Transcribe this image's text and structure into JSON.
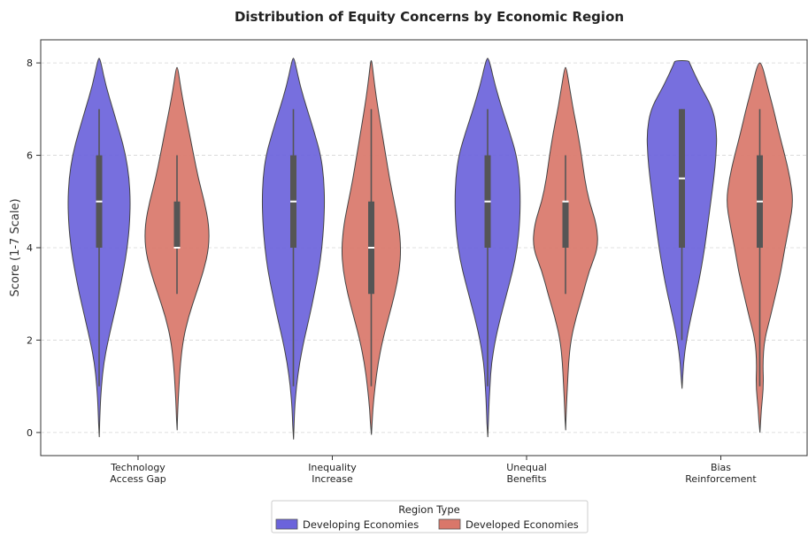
{
  "chart_data": {
    "type": "violin",
    "title": "Distribution of Equity Concerns by Economic Region",
    "xlabel": "",
    "ylabel": "Score (1-7 Scale)",
    "ylim": [
      -0.5,
      8.5
    ],
    "yticks": [
      0,
      2,
      4,
      6,
      8
    ],
    "grid": "horizontal-dashed",
    "categories": [
      [
        "Technology",
        "Access Gap"
      ],
      [
        "Inequality",
        "Increase"
      ],
      [
        "Unequal",
        "Benefits"
      ],
      [
        "Bias",
        "Reinforcement"
      ]
    ],
    "legend": {
      "title": "Region Type",
      "placement": "bottom-center"
    },
    "series": [
      {
        "name": "Developing Economies",
        "color": "#6b63db",
        "groups": [
          {
            "min": 1,
            "q1": 4,
            "median": 5,
            "q3": 6,
            "max": 7,
            "profile": [
              [
                -0.1,
                0.005
              ],
              [
                0.5,
                0.025
              ],
              [
                1,
                0.06
              ],
              [
                1.5,
                0.12
              ],
              [
                2,
                0.24
              ],
              [
                2.5,
                0.38
              ],
              [
                3,
                0.52
              ],
              [
                3.5,
                0.64
              ],
              [
                4,
                0.74
              ],
              [
                4.5,
                0.8
              ],
              [
                5,
                0.82
              ],
              [
                5.5,
                0.79
              ],
              [
                6,
                0.7
              ],
              [
                6.5,
                0.54
              ],
              [
                7,
                0.36
              ],
              [
                7.5,
                0.18
              ],
              [
                8,
                0.05
              ],
              [
                8.1,
                0.01
              ]
            ]
          },
          {
            "min": 1,
            "q1": 4,
            "median": 5,
            "q3": 6,
            "max": 7,
            "profile": [
              [
                -0.15,
                0.005
              ],
              [
                0.5,
                0.03
              ],
              [
                1,
                0.08
              ],
              [
                1.5,
                0.16
              ],
              [
                2,
                0.28
              ],
              [
                2.5,
                0.42
              ],
              [
                3,
                0.55
              ],
              [
                3.5,
                0.67
              ],
              [
                4,
                0.75
              ],
              [
                4.5,
                0.8
              ],
              [
                5,
                0.82
              ],
              [
                5.5,
                0.8
              ],
              [
                6,
                0.72
              ],
              [
                6.5,
                0.55
              ],
              [
                7,
                0.36
              ],
              [
                7.5,
                0.18
              ],
              [
                8,
                0.05
              ],
              [
                8.1,
                0.01
              ]
            ]
          },
          {
            "min": 1,
            "q1": 4,
            "median": 5,
            "q3": 6,
            "max": 7,
            "profile": [
              [
                -0.1,
                0.005
              ],
              [
                0.5,
                0.03
              ],
              [
                1,
                0.06
              ],
              [
                1.5,
                0.1
              ],
              [
                2,
                0.2
              ],
              [
                2.5,
                0.34
              ],
              [
                3,
                0.5
              ],
              [
                3.5,
                0.66
              ],
              [
                4,
                0.78
              ],
              [
                4.5,
                0.84
              ],
              [
                5,
                0.86
              ],
              [
                5.5,
                0.84
              ],
              [
                6,
                0.76
              ],
              [
                6.5,
                0.58
              ],
              [
                7,
                0.38
              ],
              [
                7.5,
                0.2
              ],
              [
                8,
                0.06
              ],
              [
                8.1,
                0.01
              ]
            ]
          },
          {
            "min": 2,
            "q1": 4,
            "median": 5.5,
            "q3": 7,
            "max": 7,
            "profile": [
              [
                0.95,
                0.005
              ],
              [
                1.5,
                0.04
              ],
              [
                2,
                0.12
              ],
              [
                2.5,
                0.24
              ],
              [
                3,
                0.38
              ],
              [
                3.5,
                0.5
              ],
              [
                4,
                0.6
              ],
              [
                4.5,
                0.68
              ],
              [
                5,
                0.76
              ],
              [
                5.5,
                0.84
              ],
              [
                6,
                0.9
              ],
              [
                6.5,
                0.92
              ],
              [
                7,
                0.82
              ],
              [
                7.5,
                0.48
              ],
              [
                8,
                0.2
              ],
              [
                8.05,
                0.18
              ]
            ]
          }
        ]
      },
      {
        "name": "Developed Economies",
        "color": "#d9776a",
        "groups": [
          {
            "min": 3,
            "q1": 4,
            "median": 4,
            "q3": 5,
            "max": 6,
            "profile": [
              [
                0.05,
                0.005
              ],
              [
                0.5,
                0.02
              ],
              [
                1,
                0.05
              ],
              [
                1.5,
                0.09
              ],
              [
                2,
                0.16
              ],
              [
                2.5,
                0.3
              ],
              [
                3,
                0.5
              ],
              [
                3.5,
                0.7
              ],
              [
                4,
                0.84
              ],
              [
                4.5,
                0.84
              ],
              [
                5,
                0.72
              ],
              [
                5.5,
                0.56
              ],
              [
                6,
                0.44
              ],
              [
                6.5,
                0.32
              ],
              [
                7,
                0.2
              ],
              [
                7.5,
                0.09
              ],
              [
                7.9,
                0.02
              ]
            ]
          },
          {
            "min": 1,
            "q1": 3,
            "median": 4,
            "q3": 5,
            "max": 7,
            "profile": [
              [
                -0.05,
                0.005
              ],
              [
                0.5,
                0.04
              ],
              [
                1,
                0.1
              ],
              [
                1.5,
                0.18
              ],
              [
                2,
                0.3
              ],
              [
                2.5,
                0.46
              ],
              [
                3,
                0.62
              ],
              [
                3.5,
                0.74
              ],
              [
                4,
                0.78
              ],
              [
                4.5,
                0.72
              ],
              [
                5,
                0.6
              ],
              [
                5.5,
                0.48
              ],
              [
                6,
                0.38
              ],
              [
                6.5,
                0.28
              ],
              [
                7,
                0.18
              ],
              [
                7.5,
                0.09
              ],
              [
                8,
                0.02
              ],
              [
                8.05,
                0.005
              ]
            ]
          },
          {
            "min": 3,
            "q1": 4,
            "median": 5,
            "q3": 5,
            "max": 6,
            "profile": [
              [
                0.05,
                0.005
              ],
              [
                0.5,
                0.02
              ],
              [
                1,
                0.05
              ],
              [
                1.5,
                0.08
              ],
              [
                2,
                0.14
              ],
              [
                2.5,
                0.28
              ],
              [
                3,
                0.46
              ],
              [
                3.5,
                0.62
              ],
              [
                4,
                0.86
              ],
              [
                4.5,
                0.82
              ],
              [
                5,
                0.62
              ],
              [
                5.5,
                0.5
              ],
              [
                6,
                0.42
              ],
              [
                6.5,
                0.32
              ],
              [
                7,
                0.2
              ],
              [
                7.5,
                0.1
              ],
              [
                7.9,
                0.02
              ]
            ]
          },
          {
            "min": 1,
            "q1": 4,
            "median": 5,
            "q3": 6,
            "max": 7,
            "profile": [
              [
                0,
                0.005
              ],
              [
                0.5,
                0.04
              ],
              [
                1,
                0.1
              ],
              [
                1.5,
                0.08
              ],
              [
                2,
                0.12
              ],
              [
                2.5,
                0.28
              ],
              [
                3,
                0.42
              ],
              [
                3.5,
                0.56
              ],
              [
                4,
                0.66
              ],
              [
                4.5,
                0.78
              ],
              [
                5,
                0.88
              ],
              [
                5.5,
                0.8
              ],
              [
                6,
                0.66
              ],
              [
                6.5,
                0.5
              ],
              [
                7,
                0.36
              ],
              [
                7.5,
                0.2
              ],
              [
                8,
                0.05
              ]
            ]
          }
        ]
      }
    ]
  }
}
